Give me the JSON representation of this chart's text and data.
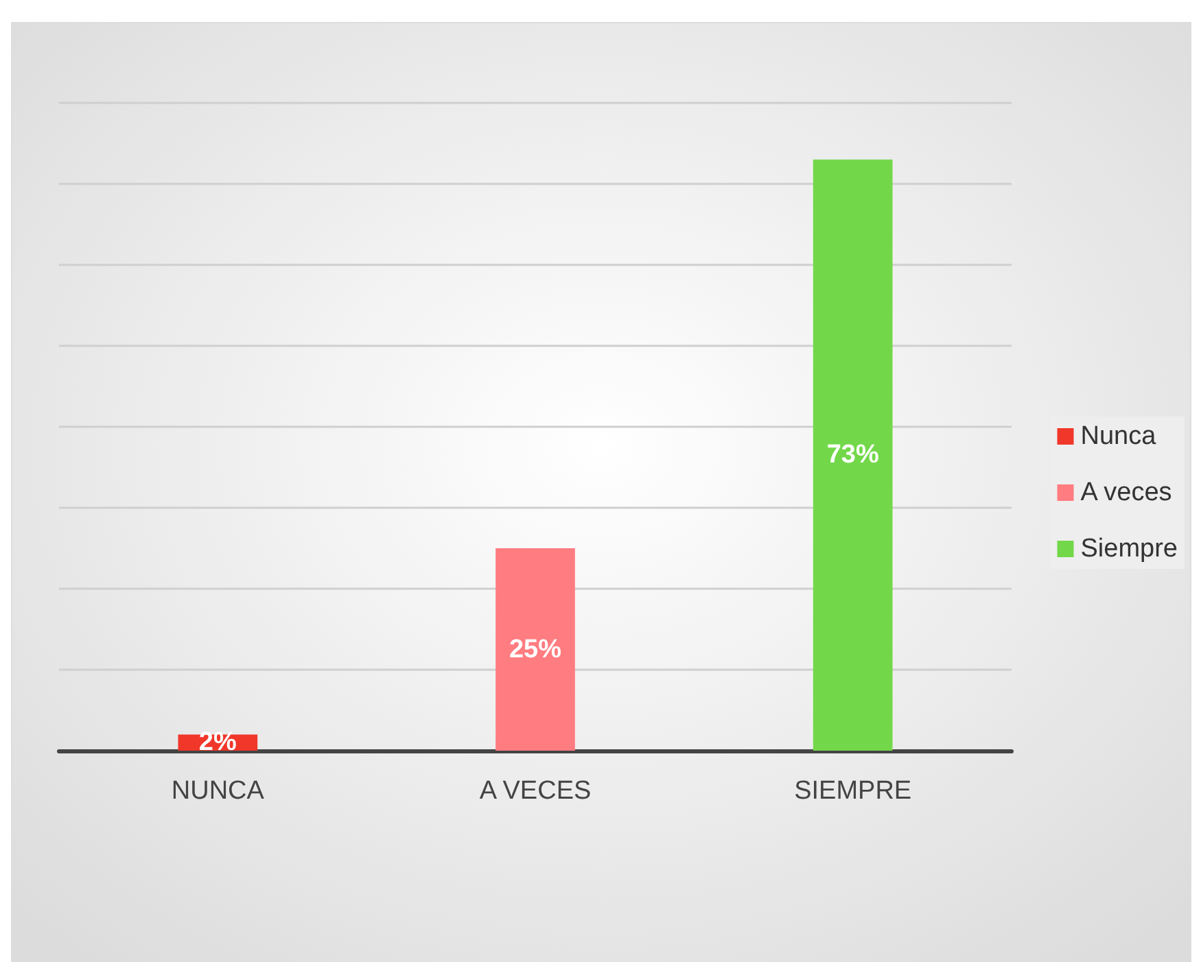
{
  "chart_data": {
    "type": "bar",
    "categories": [
      "NUNCA",
      "A VECES",
      "SIEMPRE"
    ],
    "series": [
      {
        "name": "Nunca",
        "color": "#f0372a",
        "values": [
          2,
          null,
          null
        ],
        "value_labels": [
          "2%",
          null,
          null
        ]
      },
      {
        "name": "A veces",
        "color": "#ff7c80",
        "values": [
          null,
          25,
          null
        ],
        "value_labels": [
          null,
          "25%",
          null
        ]
      },
      {
        "name": "Siempre",
        "color": "#72d84a",
        "values": [
          null,
          null,
          73
        ],
        "value_labels": [
          null,
          null,
          "73%"
        ]
      }
    ],
    "ylim": [
      0,
      80
    ],
    "yticks": [
      {
        "value": 0,
        "label": null
      },
      {
        "value": 10,
        "label": null
      },
      {
        "value": 20,
        "label": null
      },
      {
        "value": 30,
        "label": null
      },
      {
        "value": 40,
        "label": null
      },
      {
        "value": 50,
        "label": null
      },
      {
        "value": 60,
        "label": null
      },
      {
        "value": 70,
        "label": null
      },
      {
        "value": 80,
        "label": null
      }
    ],
    "grid": "y",
    "legend": "right",
    "tick_labels": "x"
  }
}
